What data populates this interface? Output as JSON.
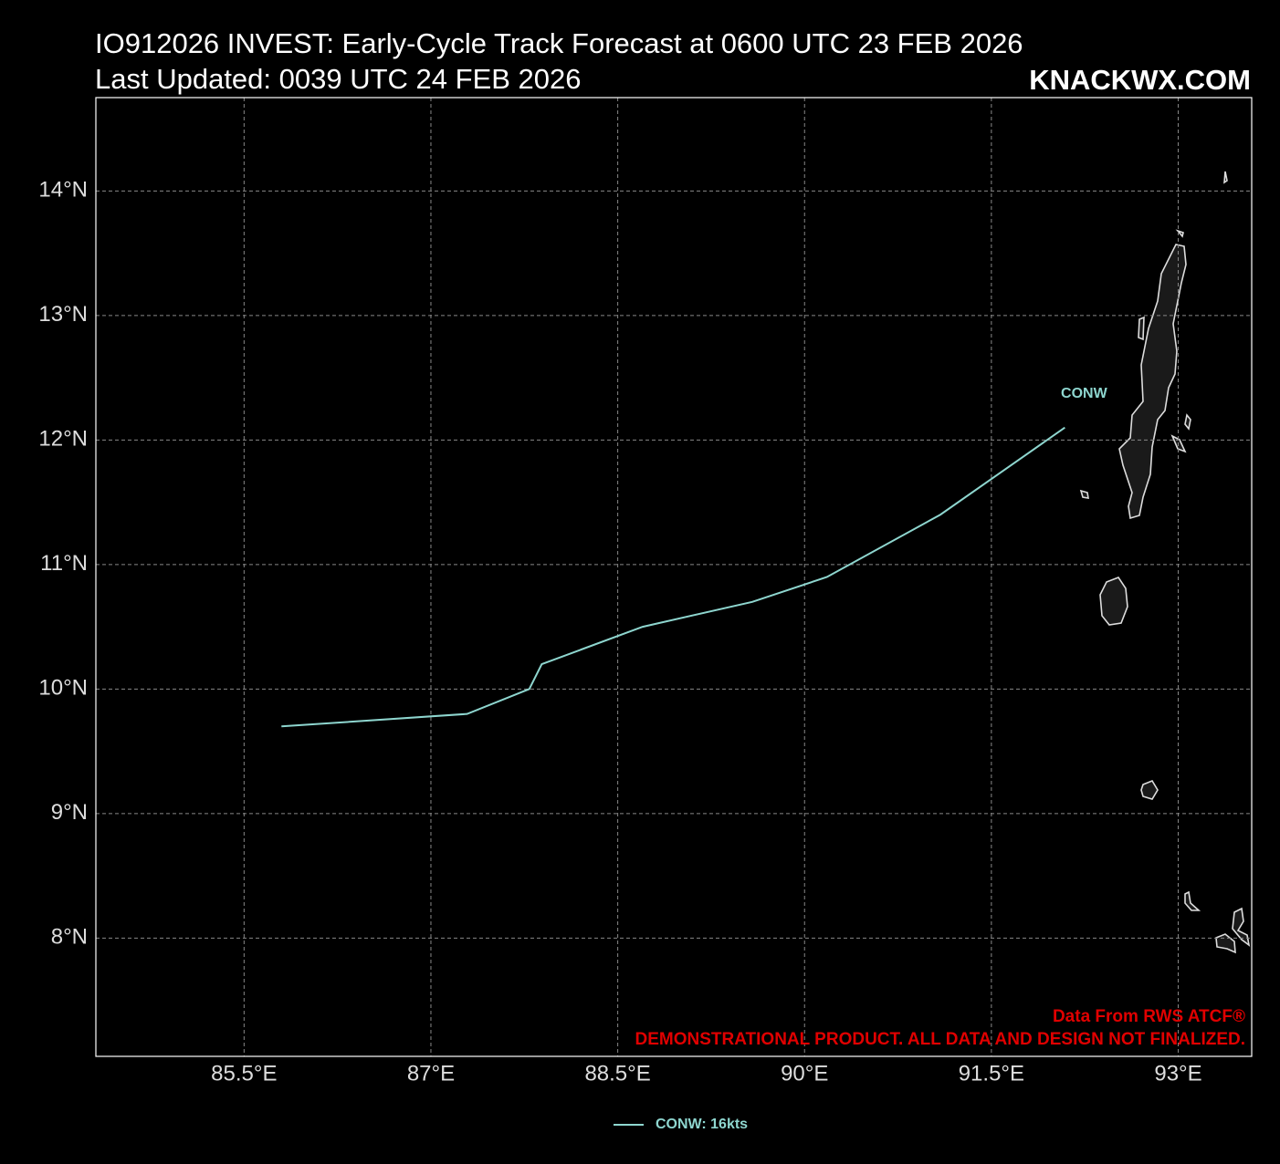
{
  "chart_data": {
    "type": "line",
    "title": "IO912026 INVEST: Early-Cycle Track Forecast at 0600 UTC 23 FEB 2026",
    "subtitle": "Last Updated: 0039 UTC 24 FEB 2026",
    "brand": "KNACKWX.COM",
    "source_note": "Data From RWS ATCF®",
    "disclaimer": "DEMONSTRATIONAL PRODUCT. ALL DATA AND DESIGN NOT FINALIZED.",
    "x": [
      85.8,
      87.29,
      87.79,
      87.89,
      88.7,
      89.58,
      90.18,
      91.09,
      92.09
    ],
    "series": [
      {
        "name": "CONW",
        "color": "#8ed6cf",
        "values": [
          9.7,
          9.8,
          10.0,
          10.2,
          10.5,
          10.7,
          10.9,
          11.4,
          12.1
        ]
      }
    ],
    "legend_label": "CONW: 16kts",
    "xlim": [
      84.31,
      93.59
    ],
    "ylim": [
      7.05,
      14.75
    ],
    "xticks": [
      {
        "value": 85.5,
        "label": "85.5°E"
      },
      {
        "value": 87,
        "label": "87°E"
      },
      {
        "value": 88.5,
        "label": "88.5°E"
      },
      {
        "value": 90,
        "label": "90°E"
      },
      {
        "value": 91.5,
        "label": "91.5°E"
      },
      {
        "value": 93,
        "label": "93°E"
      }
    ],
    "yticks": [
      {
        "value": 8,
        "label": "8°N"
      },
      {
        "value": 9,
        "label": "9°N"
      },
      {
        "value": 10,
        "label": "10°N"
      },
      {
        "value": 11,
        "label": "11°N"
      },
      {
        "value": 12,
        "label": "12°N"
      },
      {
        "value": 13,
        "label": "13°N"
      },
      {
        "value": 14,
        "label": "14°N"
      }
    ],
    "grid": true
  }
}
